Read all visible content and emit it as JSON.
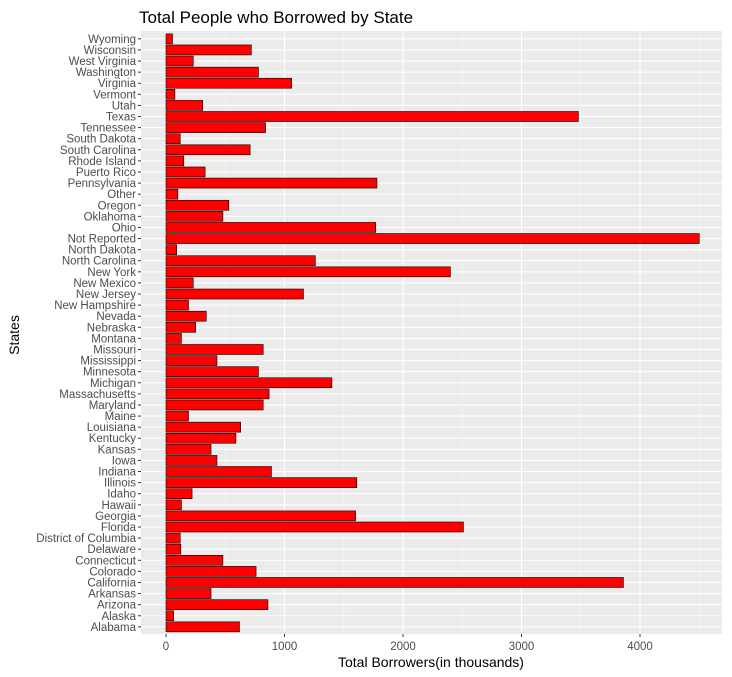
{
  "chart_data": {
    "type": "bar",
    "orientation": "horizontal",
    "title": "Total People who Borrowed by State",
    "xlabel": "Total Borrowers(in thousands)",
    "ylabel": "States",
    "xlim": [
      0,
      4500
    ],
    "x_ticks": [
      0,
      1000,
      2000,
      3000,
      4000
    ],
    "grid": true,
    "legend": "none",
    "bar_color": "#ff0000",
    "bar_border_color": "#000000",
    "panel_color": "#ebebeb",
    "categories": [
      "Alabama",
      "Alaska",
      "Arizona",
      "Arkansas",
      "California",
      "Colorado",
      "Connecticut",
      "Delaware",
      "District of Columbia",
      "Florida",
      "Georgia",
      "Hawaii",
      "Idaho",
      "Illinois",
      "Indiana",
      "Iowa",
      "Kansas",
      "Kentucky",
      "Louisiana",
      "Maine",
      "Maryland",
      "Massachusetts",
      "Michigan",
      "Minnesota",
      "Mississippi",
      "Missouri",
      "Montana",
      "Nebraska",
      "Nevada",
      "New Hampshire",
      "New Jersey",
      "New Mexico",
      "New York",
      "North Carolina",
      "North Dakota",
      "Not Reported",
      "Ohio",
      "Oklahoma",
      "Oregon",
      "Other",
      "Pennsylvania",
      "Puerto Rico",
      "Rhode Island",
      "South Carolina",
      "South Dakota",
      "Tennessee",
      "Texas",
      "Utah",
      "Vermont",
      "Virginia",
      "Washington",
      "West Virginia",
      "Wisconsin",
      "Wyoming"
    ],
    "values": [
      620,
      65,
      860,
      380,
      3860,
      760,
      480,
      125,
      120,
      2510,
      1600,
      130,
      220,
      1610,
      890,
      430,
      380,
      590,
      630,
      190,
      820,
      870,
      1400,
      780,
      430,
      820,
      130,
      250,
      340,
      190,
      1160,
      230,
      2400,
      1260,
      90,
      4500,
      1770,
      480,
      530,
      100,
      1780,
      330,
      150,
      710,
      120,
      840,
      3480,
      310,
      75,
      1060,
      780,
      230,
      720,
      55
    ]
  }
}
